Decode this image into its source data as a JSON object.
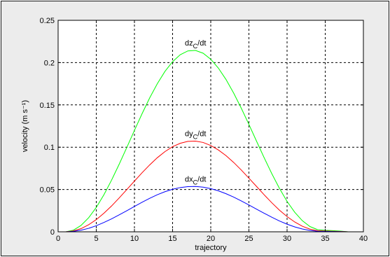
{
  "chart_data": {
    "type": "line",
    "xlabel": "trajectory",
    "ylabel": "velocity (m s⁻¹)",
    "xlim": [
      0,
      40
    ],
    "ylim": [
      0,
      0.25
    ],
    "x_ticks": [
      "0",
      "5",
      "10",
      "15",
      "20",
      "25",
      "30",
      "35",
      "40"
    ],
    "y_ticks": [
      "0",
      "0.05",
      "0.1",
      "0.15",
      "0.2",
      "0.25"
    ],
    "grid": true,
    "series": [
      {
        "label": "dz_C/dt",
        "label_base": "dz",
        "label_sub": "C",
        "label_tail": "/dt",
        "color": "#00ff00",
        "x": [
          1,
          2,
          3,
          4,
          5,
          6,
          7,
          8,
          9,
          10,
          11,
          12,
          13,
          14,
          15,
          16,
          17,
          18,
          19,
          20,
          21,
          22,
          23,
          24,
          25,
          26,
          27,
          28,
          29,
          30,
          31,
          32,
          33,
          34,
          35,
          36,
          37,
          38
        ],
        "y": [
          0,
          0.0019,
          0.0075,
          0.0166,
          0.0288,
          0.0438,
          0.061,
          0.0799,
          0.0997,
          0.1199,
          0.1396,
          0.1583,
          0.1751,
          0.1896,
          0.2011,
          0.2093,
          0.2138,
          0.2144,
          0.2111,
          0.204,
          0.1935,
          0.18,
          0.164,
          0.1461,
          0.1269,
          0.1071,
          0.0875,
          0.0687,
          0.0513,
          0.0359,
          0.0231,
          0.0131,
          0.0062,
          0.0025,
          0.0018,
          0.0013,
          0.0008,
          0
        ]
      },
      {
        "label": "dy_C/dt",
        "label_base": "dy",
        "label_sub": "C",
        "label_tail": "/dt",
        "color": "#ff0000",
        "x": [
          1,
          2,
          3,
          4,
          5,
          6,
          7,
          8,
          9,
          10,
          11,
          12,
          13,
          14,
          15,
          16,
          17,
          18,
          19,
          20,
          21,
          22,
          23,
          24,
          25,
          26,
          27,
          28,
          29,
          30,
          31,
          32,
          33,
          34,
          35,
          36,
          37,
          38
        ],
        "y": [
          0,
          0.001,
          0.0037,
          0.0083,
          0.0144,
          0.0219,
          0.0305,
          0.04,
          0.0499,
          0.0599,
          0.0698,
          0.0791,
          0.0876,
          0.0948,
          0.1006,
          0.1046,
          0.1069,
          0.1072,
          0.1056,
          0.102,
          0.0967,
          0.09,
          0.082,
          0.073,
          0.0634,
          0.0536,
          0.0437,
          0.0343,
          0.0256,
          0.018,
          0.0116,
          0.0066,
          0.0031,
          0.0012,
          0.0009,
          0.0006,
          0.0004,
          0
        ]
      },
      {
        "label": "dx_C/dt",
        "label_base": "dx",
        "label_sub": "C",
        "label_tail": "/dt",
        "color": "#0000ff",
        "x": [
          1,
          2,
          3,
          4,
          5,
          6,
          7,
          8,
          9,
          10,
          11,
          12,
          13,
          14,
          15,
          16,
          17,
          18,
          19,
          20,
          21,
          22,
          23,
          24,
          25,
          26,
          27,
          28,
          29,
          30,
          31,
          32,
          33,
          34,
          35,
          36,
          37,
          38
        ],
        "y": [
          0,
          0.0005,
          0.0019,
          0.0041,
          0.0072,
          0.011,
          0.0153,
          0.02,
          0.0249,
          0.03,
          0.0349,
          0.0396,
          0.0438,
          0.0474,
          0.0503,
          0.0523,
          0.0534,
          0.0536,
          0.0528,
          0.051,
          0.0484,
          0.045,
          0.041,
          0.0365,
          0.0317,
          0.0268,
          0.0219,
          0.0172,
          0.0128,
          0.009,
          0.0058,
          0.0033,
          0.0016,
          0.0006,
          0.0005,
          0.0003,
          0.0002,
          0
        ]
      }
    ]
  }
}
